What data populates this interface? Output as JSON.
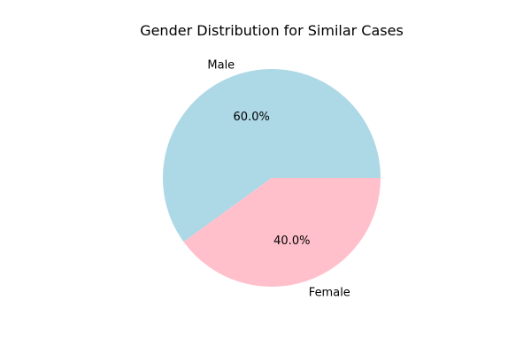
{
  "chart_data": {
    "type": "pie",
    "title": "Gender Distribution for Similar Cases",
    "categories": [
      "Male",
      "Female"
    ],
    "values": [
      60.0,
      40.0
    ],
    "percent_labels": [
      "60.0%",
      "40.0%"
    ],
    "colors": [
      "#add8e6",
      "#ffc0cb"
    ],
    "start_angle": 0,
    "direction": "counterclockwise",
    "legend": "none"
  }
}
